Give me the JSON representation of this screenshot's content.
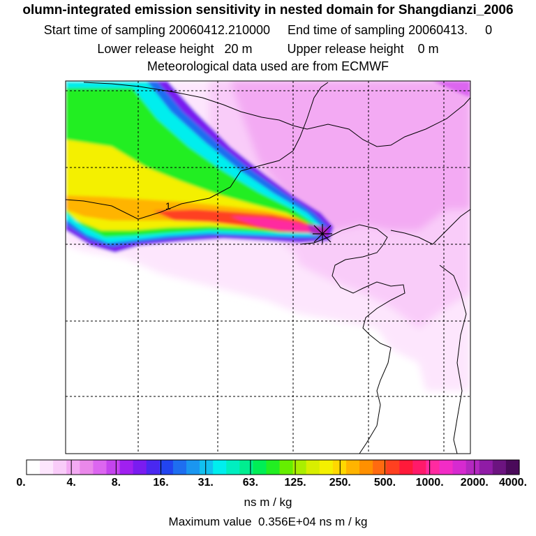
{
  "header": {
    "title": "olumn-integrated emission sensitivity in nested domain for Shangdianzi_2006",
    "sampling": "Start time of sampling 20060412.210000     End time of sampling 20060413.     0",
    "release": "Lower release height   20 m          Upper release height    0 m",
    "met": "Meteorological data used are from ECMWF"
  },
  "chart_data": {
    "type": "heatmap",
    "title": "olumn-integrated emission sensitivity in nested domain for Shangdianzi_2006",
    "colorbar": {
      "tick_labels": [
        "0.",
        "4.",
        "8.",
        "16.",
        "31.",
        "63.",
        "125.",
        "250.",
        "500.",
        "1000.",
        "2000.",
        "4000."
      ],
      "units": "ns m / kg",
      "colors": [
        "#ffffff",
        "#fde6fd",
        "#f9ccf9",
        "#f3aaf3",
        "#ea88ea",
        "#dc66f0",
        "#c444ee",
        "#a020f0",
        "#7a1cf0",
        "#4a28f0",
        "#2244f0",
        "#1e6ef0",
        "#1a96f0",
        "#12c0f0",
        "#00eeee",
        "#00eec0",
        "#00ee90",
        "#00ee55",
        "#22ee22",
        "#66ee00",
        "#aaee00",
        "#d8ee00",
        "#f4f000",
        "#ffd800",
        "#ffb400",
        "#ff9000",
        "#ff6a10",
        "#ff4020",
        "#ff1a3a",
        "#ff1a6a",
        "#ff2aa0",
        "#f22cc6",
        "#d62ad0",
        "#b428c0",
        "#901ca6",
        "#6c1480",
        "#4a0a5a"
      ]
    },
    "contour_label": "1",
    "max_value": "Maximum value  0.356E+04 ns m / kg",
    "release_marker": "release-site",
    "grid": true
  },
  "footer": {
    "units": "ns m / kg",
    "max_value": "Maximum value  0.356E+04 ns m / kg"
  }
}
